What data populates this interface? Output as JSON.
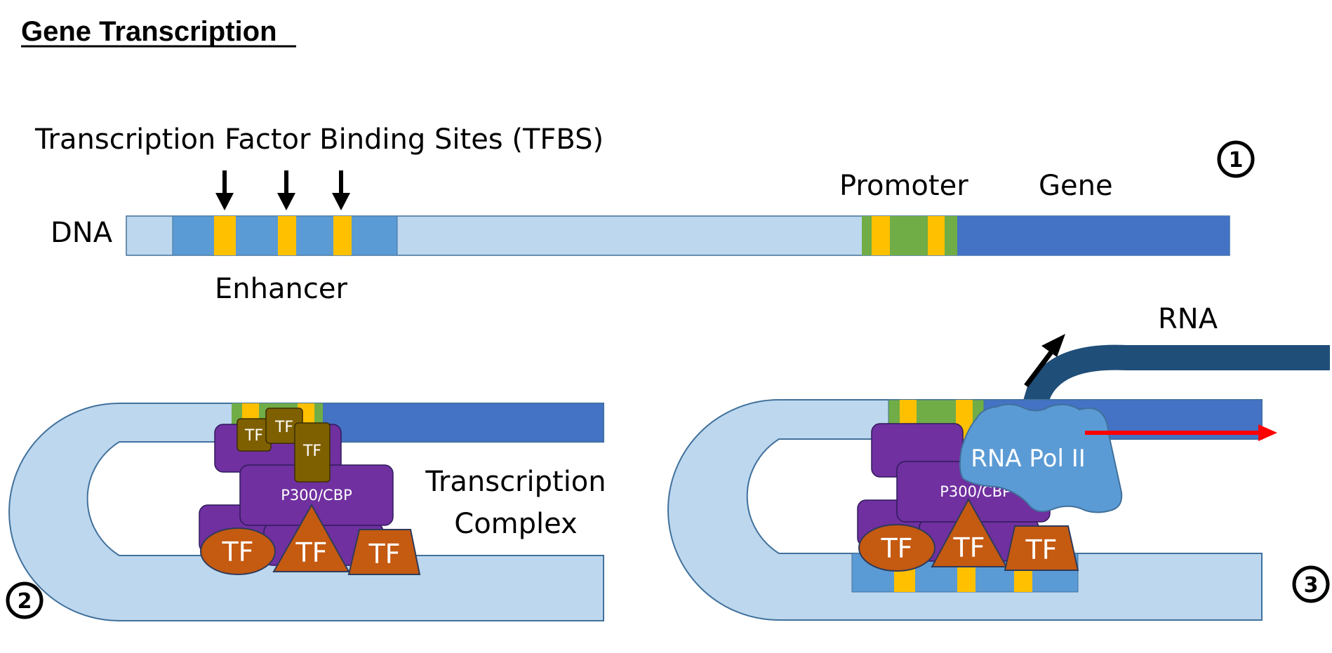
{
  "title": "Gene Transcription",
  "labels": {
    "tfbs": "Transcription Factor Binding Sites (TFBS)",
    "dna": "DNA",
    "promoter": "Promoter",
    "gene": "Gene",
    "enhancer": "Enhancer",
    "rna": "RNA",
    "transcription_complex_line1": "Transcription",
    "transcription_complex_line2": "Complex",
    "rna_pol": "RNA Pol II",
    "p300": "P300/CBP",
    "tf": "TF"
  },
  "steps": [
    "1",
    "2",
    "3"
  ],
  "colors": {
    "dna_light": "#bdd7ee",
    "enhancer_blue": "#5b9bd5",
    "tfbs_yellow": "#ffc000",
    "promoter_green": "#70ad47",
    "gene_blue": "#4472c4",
    "complex_purple": "#7030a0",
    "tf_orange": "#c55a11",
    "small_tf_olive": "#7f6000",
    "rna_navy": "#1f4e79",
    "forward_arrow_red": "#ff0000"
  }
}
